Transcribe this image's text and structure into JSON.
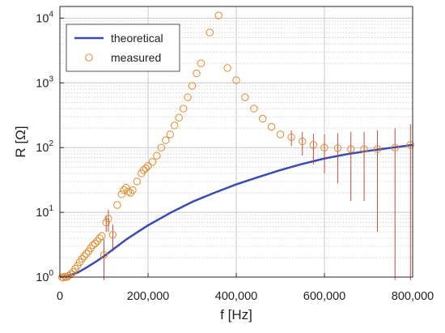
{
  "chart_data": {
    "type": "scatter",
    "title": "",
    "xlabel": "f [Hz]",
    "ylabel": "R [Ω]",
    "xlim": [
      0,
      800000
    ],
    "ylim_log10": [
      0,
      4.18
    ],
    "y_scale": "log",
    "grid": "major and minor (y)",
    "legend_location": "top-left",
    "x_tick_labels": [
      "0",
      "200,000",
      "400,000",
      "600,000",
      "800,000"
    ],
    "x_tick_values": [
      0,
      200000,
      400000,
      600000,
      800000
    ],
    "y_tick_labels": [
      {
        "base": "10",
        "exp": "0",
        "value": 1
      },
      {
        "base": "10",
        "exp": "1",
        "value": 10
      },
      {
        "base": "10",
        "exp": "2",
        "value": 100
      },
      {
        "base": "10",
        "exp": "3",
        "value": 1000
      },
      {
        "base": "10",
        "exp": "4",
        "value": 10000
      }
    ],
    "colors": {
      "theoretical": "#3b4bb0",
      "measured": "#e08a2e",
      "errorbar": "#b73a2a",
      "grid": "#c8c8c8",
      "axis": "#262626"
    },
    "series": [
      {
        "name": "theoretical",
        "kind": "line",
        "x": [
          0,
          20000,
          40000,
          60000,
          80000,
          100000,
          150000,
          200000,
          250000,
          300000,
          350000,
          400000,
          450000,
          500000,
          550000,
          600000,
          650000,
          700000,
          750000,
          800000
        ],
        "y": [
          1.0,
          1.05,
          1.17,
          1.4,
          1.7,
          2.1,
          3.8,
          6.3,
          9.8,
          14.5,
          20,
          27,
          35,
          45,
          56,
          68,
          79,
          89,
          99,
          110
        ]
      },
      {
        "name": "measured",
        "kind": "scatter",
        "x": [
          5000,
          8000,
          12000,
          16000,
          20000,
          25000,
          30000,
          35000,
          40000,
          45000,
          50000,
          55000,
          60000,
          65000,
          70000,
          75000,
          80000,
          85000,
          90000,
          95000,
          100000,
          105000,
          110000,
          120000,
          130000,
          140000,
          145000,
          150000,
          155000,
          160000,
          165000,
          175000,
          185000,
          190000,
          195000,
          200000,
          210000,
          220000,
          230000,
          240000,
          250000,
          260000,
          270000,
          280000,
          290000,
          300000,
          310000,
          320000,
          340000,
          360000,
          380000,
          400000,
          420000,
          440000,
          460000,
          480000,
          500000,
          525000,
          550000,
          575000,
          600000,
          630000,
          660000,
          690000,
          720000,
          760000,
          795000
        ],
        "y": [
          1.0,
          0.98,
          1.02,
          1.0,
          1.05,
          1.1,
          1.2,
          1.35,
          1.5,
          1.7,
          1.9,
          2.1,
          2.3,
          2.5,
          2.8,
          3.1,
          3.3,
          3.6,
          4.0,
          4.3,
          2.2,
          7.0,
          8.0,
          4.5,
          13,
          19,
          22,
          24,
          21,
          20,
          22,
          30,
          40,
          45,
          48,
          52,
          60,
          75,
          100,
          130,
          160,
          220,
          290,
          400,
          600,
          900,
          1400,
          2000,
          6000,
          11000,
          1700,
          1100,
          600,
          400,
          280,
          210,
          160,
          145,
          125,
          110,
          100,
          98,
          95,
          95,
          95,
          100,
          110
        ],
        "err": [
          0,
          0,
          0,
          0,
          0,
          0,
          0,
          0,
          0,
          0,
          0,
          0,
          0,
          0,
          0,
          0,
          0,
          0,
          0,
          0,
          1.6,
          2,
          3,
          2,
          0,
          0,
          0,
          0,
          0,
          0,
          0,
          0,
          0,
          0,
          0,
          0,
          0,
          0,
          0,
          0,
          0,
          0,
          0,
          0,
          0,
          0,
          0,
          0,
          0,
          0,
          0,
          0,
          0,
          0,
          0,
          0,
          0,
          40,
          50,
          55,
          60,
          70,
          80,
          80,
          90,
          100,
          120
        ]
      }
    ]
  }
}
